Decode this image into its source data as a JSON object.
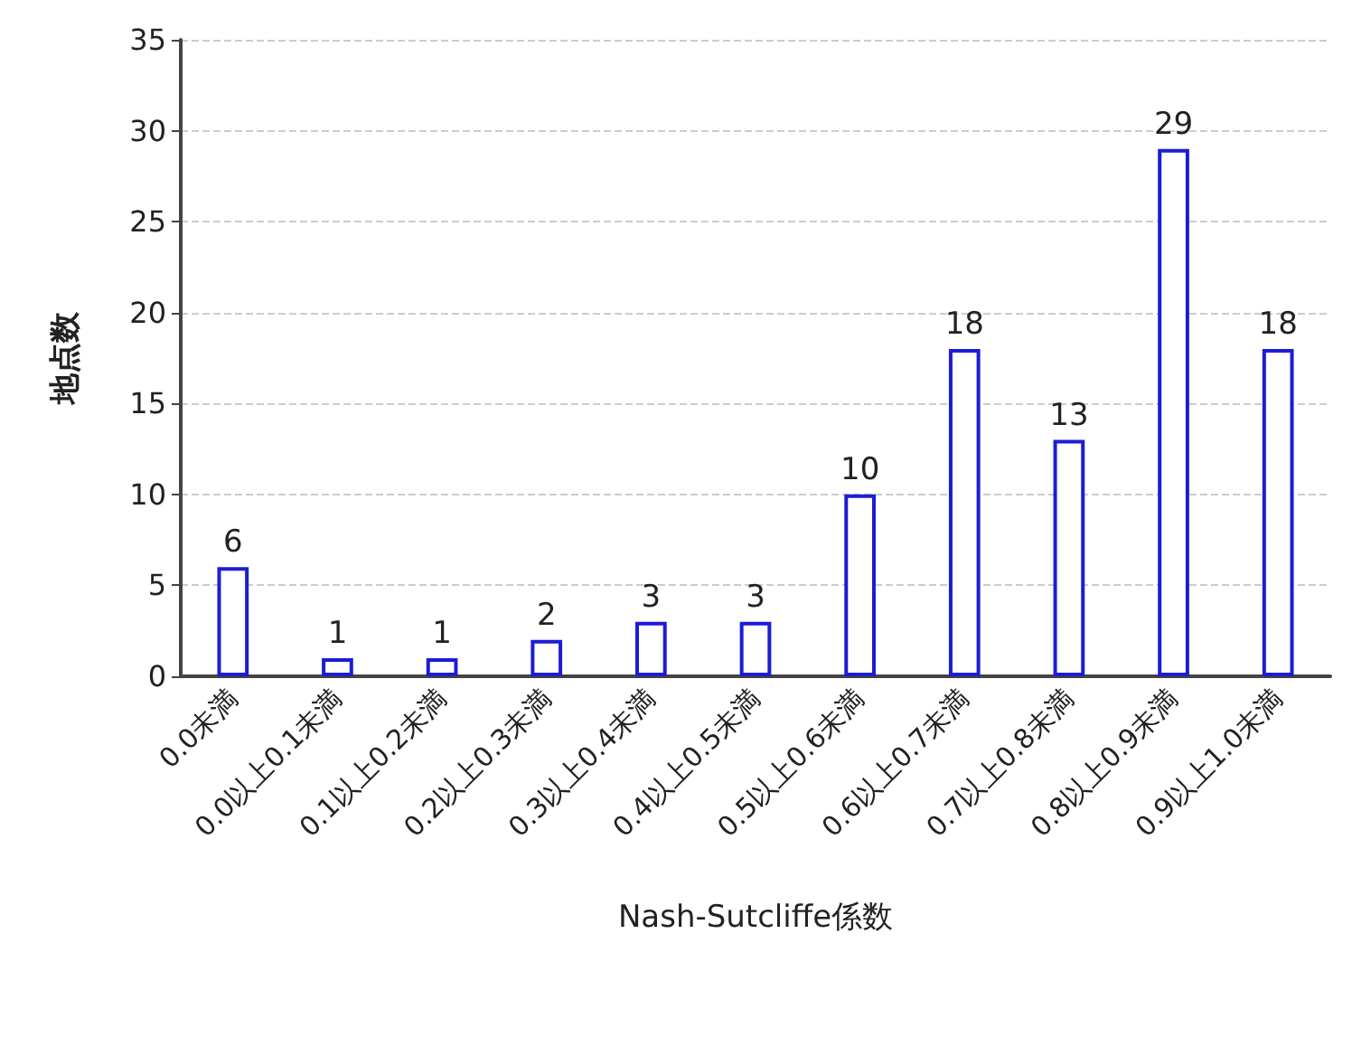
{
  "chart_data": {
    "type": "bar",
    "xlabel": "Nash-Sutcliffe係数",
    "ylabel": "地点数",
    "categories": [
      "0.0未満",
      "0.0以上0.1未満",
      "0.1以上0.2未満",
      "0.2以上0.3未満",
      "0.3以上0.4未満",
      "0.4以上0.5未満",
      "0.5以上0.6未満",
      "0.6以上0.7未満",
      "0.7以上0.8未満",
      "0.8以上0.9未満",
      "0.9以上1.0未満"
    ],
    "values": [
      6,
      1,
      1,
      2,
      3,
      3,
      10,
      18,
      13,
      29,
      18
    ],
    "color": "#1c1cd6",
    "ylim": [
      0,
      35
    ],
    "yticks": [
      0,
      5,
      10,
      15,
      20,
      25,
      30,
      35
    ],
    "grid": "y",
    "data_labels": true
  }
}
